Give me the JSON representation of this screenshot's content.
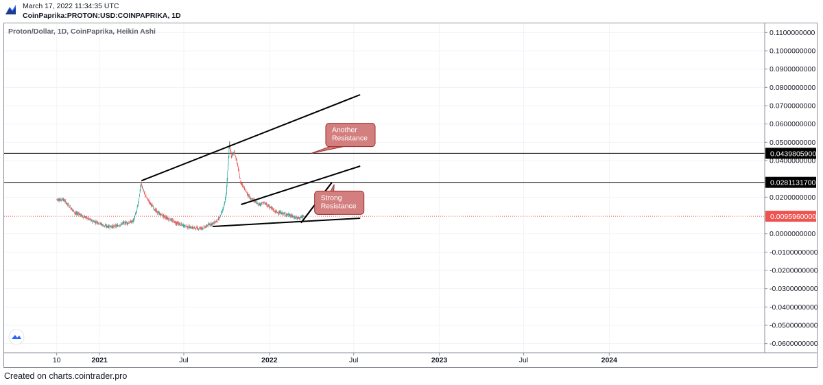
{
  "header": {
    "timestamp": "March 17, 2022 11:34:35 UTC",
    "symbol": "CoinPaprika:PROTON:USD:COINPAPRIKA, 1D"
  },
  "legend": {
    "title": "Proton/Dollar, 1D, CoinPaprika, Heikin Ashi"
  },
  "footer": {
    "text": "Created on charts.cointrader.pro"
  },
  "colors": {
    "up": "#26a69a",
    "down": "#ef5350",
    "price_line": "#ef5350",
    "price_tag": "#ef5350",
    "level_tag": "#000000",
    "callout_fill": "#d47f7f",
    "callout_stroke": "#9b2b2b",
    "trendline": "#000000",
    "grid": "#f0f3fa"
  },
  "icons": {
    "logo": "cointrader-logo-icon",
    "badge": "tradingview-badge-icon"
  },
  "chart_data": {
    "type": "candlestick",
    "chart_style": "Heikin Ashi",
    "y_axis": {
      "ylim": [
        -0.065,
        0.115
      ],
      "ticks": [
        {
          "v": 0.11,
          "label": "0.1100000000"
        },
        {
          "v": 0.1,
          "label": "0.1000000000"
        },
        {
          "v": 0.09,
          "label": "0.0900000000"
        },
        {
          "v": 0.08,
          "label": "0.0800000000"
        },
        {
          "v": 0.07,
          "label": "0.0700000000"
        },
        {
          "v": 0.06,
          "label": "0.0600000000"
        },
        {
          "v": 0.05,
          "label": "0.0500000000"
        },
        {
          "v": 0.04,
          "label": "0.0400000000"
        },
        {
          "v": 0.02,
          "label": "0.0200000000"
        },
        {
          "v": 0.0,
          "label": "0.0000000000"
        },
        {
          "v": -0.01,
          "label": "-0.0100000000"
        },
        {
          "v": -0.02,
          "label": "-0.0200000000"
        },
        {
          "v": -0.03,
          "label": "-0.0300000000"
        },
        {
          "v": -0.04,
          "label": "-0.0400000000"
        },
        {
          "v": -0.05,
          "label": "-0.0500000000"
        },
        {
          "v": -0.06,
          "label": "-0.0600000000"
        }
      ]
    },
    "x_axis": {
      "xlim": [
        "2020-06-10",
        "2024-11-30"
      ],
      "ticks": [
        {
          "date": "2020-10-01",
          "label": "10",
          "bold": false
        },
        {
          "date": "2021-01-01",
          "label": "2021",
          "bold": true
        },
        {
          "date": "2021-07-01",
          "label": "Jul",
          "bold": false
        },
        {
          "date": "2022-01-01",
          "label": "2022",
          "bold": true
        },
        {
          "date": "2022-07-01",
          "label": "Jul",
          "bold": false
        },
        {
          "date": "2023-01-01",
          "label": "2023",
          "bold": true
        },
        {
          "date": "2023-07-01",
          "label": "Jul",
          "bold": false
        },
        {
          "date": "2024-01-01",
          "label": "2024",
          "bold": true
        }
      ]
    },
    "horizontal_levels": [
      {
        "value": 0.04398059,
        "label": "0.0439805900",
        "style": "black"
      },
      {
        "value": 0.02811317,
        "label": "0.0281131700",
        "style": "black"
      }
    ],
    "last_price": {
      "value": 0.009596,
      "label": "0.0095960000"
    },
    "price_path": [
      [
        "2020-10-01",
        0.019
      ],
      [
        "2020-10-08",
        0.0185
      ],
      [
        "2020-10-15",
        0.019
      ],
      [
        "2020-10-22",
        0.017
      ],
      [
        "2020-10-29",
        0.015
      ],
      [
        "2020-11-05",
        0.013
      ],
      [
        "2020-11-12",
        0.011
      ],
      [
        "2020-11-19",
        0.011
      ],
      [
        "2020-11-26",
        0.0095
      ],
      [
        "2020-12-03",
        0.009
      ],
      [
        "2020-12-10",
        0.008
      ],
      [
        "2020-12-17",
        0.007
      ],
      [
        "2020-12-24",
        0.0065
      ],
      [
        "2021-01-01",
        0.006
      ],
      [
        "2021-01-10",
        0.0045
      ],
      [
        "2021-01-20",
        0.004
      ],
      [
        "2021-02-01",
        0.004
      ],
      [
        "2021-02-12",
        0.0045
      ],
      [
        "2021-02-22",
        0.006
      ],
      [
        "2021-03-05",
        0.006
      ],
      [
        "2021-03-15",
        0.007
      ],
      [
        "2021-03-22",
        0.012
      ],
      [
        "2021-03-28",
        0.02
      ],
      [
        "2021-04-01",
        0.028
      ],
      [
        "2021-04-05",
        0.024
      ],
      [
        "2021-04-12",
        0.02
      ],
      [
        "2021-04-20",
        0.017
      ],
      [
        "2021-05-01",
        0.013
      ],
      [
        "2021-05-10",
        0.011
      ],
      [
        "2021-05-20",
        0.0095
      ],
      [
        "2021-06-01",
        0.008
      ],
      [
        "2021-06-15",
        0.006
      ],
      [
        "2021-07-01",
        0.0045
      ],
      [
        "2021-07-15",
        0.0035
      ],
      [
        "2021-08-01",
        0.003
      ],
      [
        "2021-08-15",
        0.0035
      ],
      [
        "2021-08-25",
        0.005
      ],
      [
        "2021-09-05",
        0.006
      ],
      [
        "2021-09-15",
        0.008
      ],
      [
        "2021-09-25",
        0.014
      ],
      [
        "2021-10-01",
        0.022
      ],
      [
        "2021-10-05",
        0.038
      ],
      [
        "2021-10-08",
        0.05
      ],
      [
        "2021-10-12",
        0.042
      ],
      [
        "2021-10-18",
        0.045
      ],
      [
        "2021-10-25",
        0.038
      ],
      [
        "2021-11-01",
        0.028
      ],
      [
        "2021-11-10",
        0.024
      ],
      [
        "2021-11-20",
        0.02
      ],
      [
        "2021-12-01",
        0.018
      ],
      [
        "2021-12-10",
        0.016
      ],
      [
        "2021-12-20",
        0.017
      ],
      [
        "2022-01-01",
        0.015
      ],
      [
        "2022-01-15",
        0.012
      ],
      [
        "2022-02-01",
        0.011
      ],
      [
        "2022-02-15",
        0.01
      ],
      [
        "2022-02-25",
        0.009
      ],
      [
        "2022-03-05",
        0.0085
      ],
      [
        "2022-03-17",
        0.0096
      ]
    ],
    "trendlines": [
      {
        "p1": [
          "2021-04-01",
          0.029
        ],
        "p2": [
          "2022-07-15",
          0.076
        ]
      },
      {
        "p1": [
          "2021-11-01",
          0.016
        ],
        "p2": [
          "2022-07-15",
          0.037
        ]
      },
      {
        "p1": [
          "2021-09-01",
          0.004
        ],
        "p2": [
          "2022-07-15",
          0.0085
        ]
      },
      {
        "p1": [
          "2022-03-10",
          0.006
        ],
        "p2": [
          "2022-05-15",
          0.028
        ]
      },
      {
        "p1": [
          "2022-05-15",
          0.028
        ],
        "p2": [
          "2022-03-10",
          0.006
        ]
      }
    ],
    "annotations": [
      {
        "text": [
          "Another",
          "Resistance"
        ],
        "anchor": [
          "2022-04-01",
          0.044
        ],
        "box_at": [
          "2022-05-02",
          0.054
        ]
      },
      {
        "text": [
          "Strong",
          "Resistance"
        ],
        "anchor": [
          "2022-05-20",
          0.027
        ],
        "box_at": [
          "2022-04-08",
          0.017
        ]
      }
    ]
  }
}
